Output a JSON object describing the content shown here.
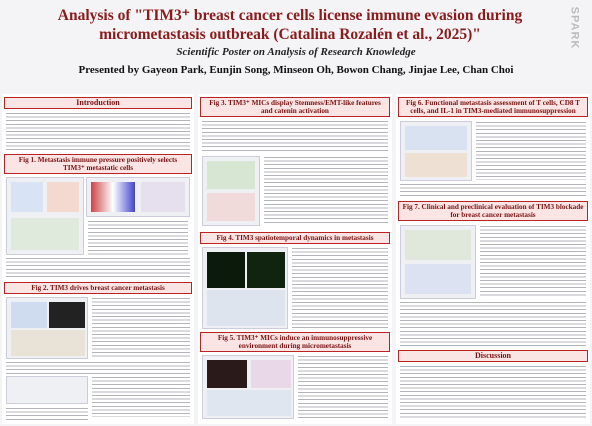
{
  "header": {
    "title": "Analysis of \"TIM3⁺ breast cancer cells license immune evasion during micrometastasis outbreak (Catalina Rozalén et al., 2025)\"",
    "subtitle": "Scientific Poster on Analysis of Research Knowledge",
    "authors": "Presented by Gayeon Park, Eunjin Song, Minseon Oh, Bowon Chang, Jinjae Lee, Chan Choi",
    "logo": "SPARK"
  },
  "sections": [
    {
      "title": "Introduction"
    },
    {
      "title": "Fig 1. Metastasis immune pressure positively selects TIM3⁺ metastatic cells"
    },
    {
      "title": "Fig 2. TIM3 drives breast cancer metastasis"
    },
    {
      "title": "Fig 3. TIM3⁺ MICs display Stemness/EMT-like features and catenin activation"
    },
    {
      "title": "Fig 4. TIM3 spatiotemporal dynamics in metastasis"
    },
    {
      "title": "Fig 5. TIM3⁺ MICs induce an immunosuppressive environment during micrometastasis"
    },
    {
      "title": "Fig 6. Functional metastasis assessment of T cells, CD8 T cells, and IL-1 in TIM3-mediated immunosuppression"
    },
    {
      "title": "Fig 7. Clinical and preclinical evaluation of TIM3 blockade for breast cancer metastasis"
    },
    {
      "title": "Discussion"
    }
  ]
}
